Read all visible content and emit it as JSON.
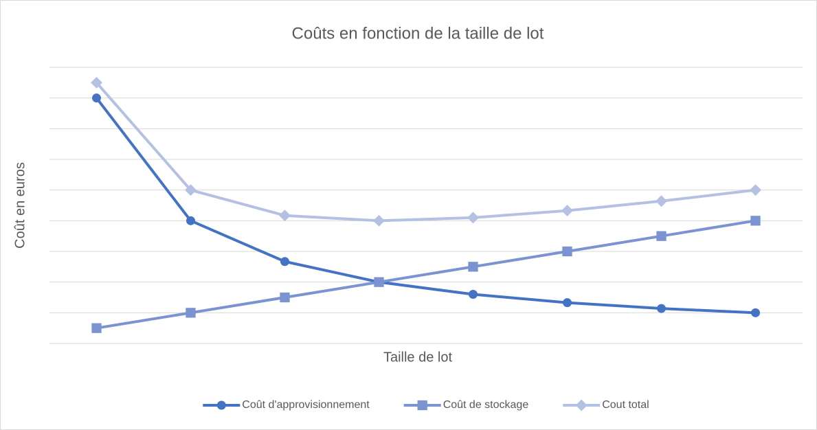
{
  "chart_data": {
    "type": "line",
    "title": "Coûts en fonction de la taille de lot",
    "x_label": "Taille de lot",
    "y_label": "Coût en euros",
    "categories": [
      null,
      null,
      null,
      null,
      null,
      null,
      null,
      null
    ],
    "series": [
      {
        "name": "Coût d'approvisionnement",
        "color": "#4472c4",
        "marker": "circle",
        "values": [
          8,
          4,
          2.67,
          2,
          1.6,
          1.33,
          1.14,
          1
        ]
      },
      {
        "name": "Coût de stockage",
        "color": "#7b93d1",
        "marker": "square",
        "values": [
          0.5,
          1,
          1.5,
          2,
          2.5,
          3,
          3.5,
          4
        ]
      },
      {
        "name": "Cout total",
        "color": "#b4c1e2",
        "marker": "diamond",
        "values": [
          8.5,
          5,
          4.17,
          4,
          4.1,
          4.33,
          4.64,
          5
        ]
      }
    ],
    "ylim": [
      0,
      9
    ],
    "yticks": [
      0,
      1,
      2,
      3,
      4,
      5,
      6,
      7,
      8,
      9
    ],
    "grid": true,
    "legend": "bottom"
  }
}
